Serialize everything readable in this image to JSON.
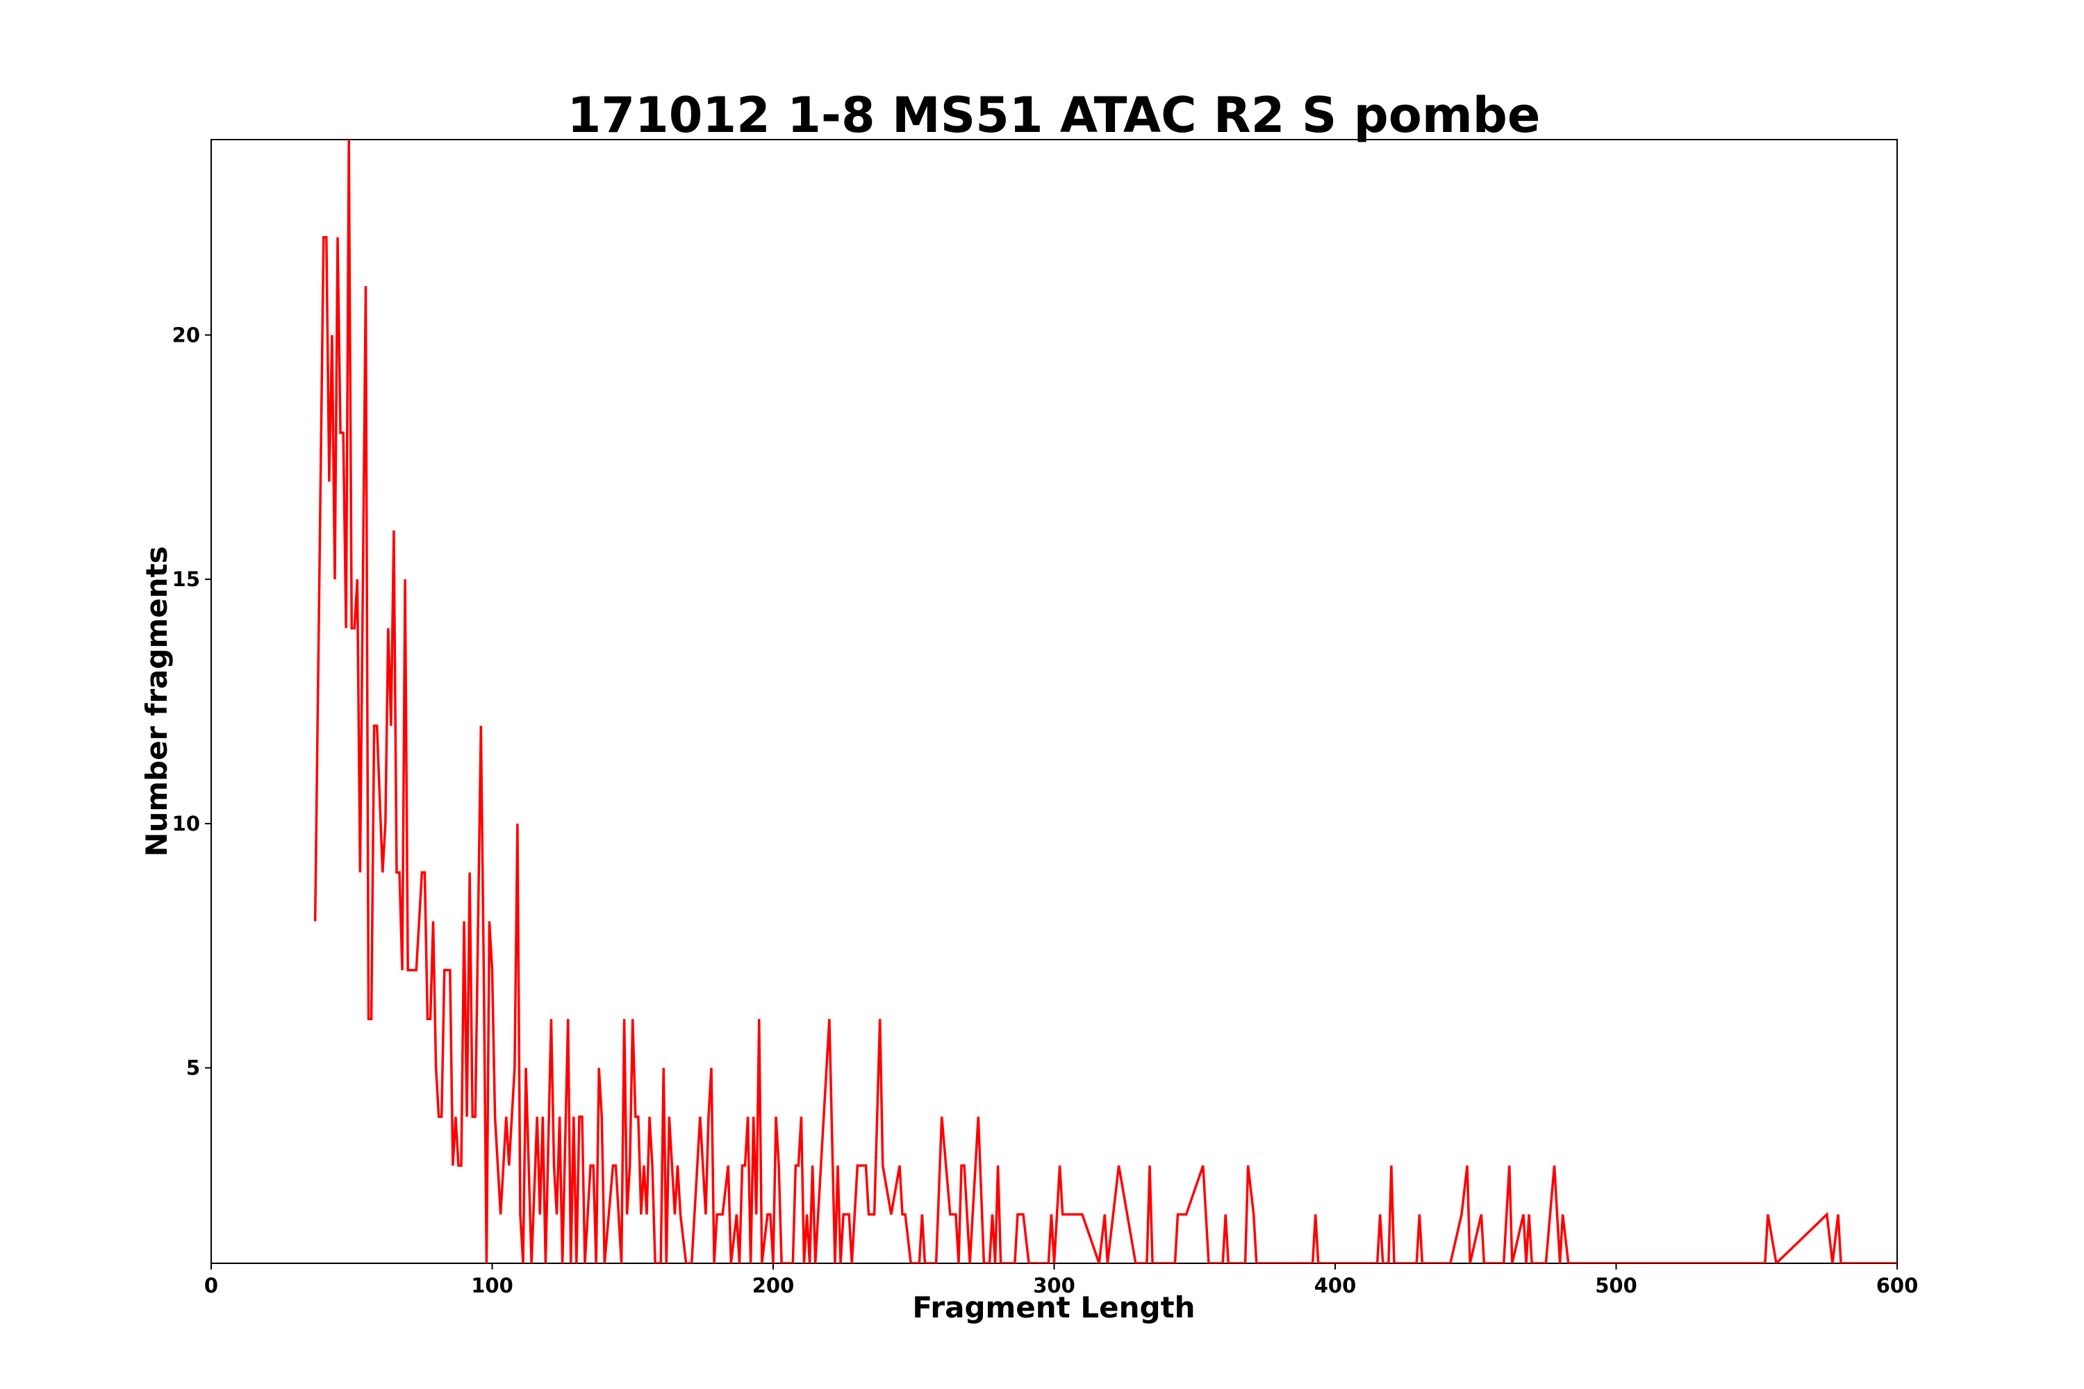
{
  "chart_data": {
    "type": "line",
    "title": "171012 1-8 MS51 ATAC R2 S pombe",
    "xlabel": "Fragment Length",
    "ylabel": "Number fragments",
    "xlim": [
      0,
      600
    ],
    "ylim": [
      1,
      24
    ],
    "xticks": [
      0,
      100,
      200,
      300,
      400,
      500,
      600
    ],
    "yticks": [
      5,
      10,
      15,
      20
    ],
    "grid": false,
    "x": [
      37,
      40,
      41,
      42,
      43,
      44,
      45,
      46,
      47,
      48,
      49,
      50,
      51,
      52,
      53,
      55,
      56,
      57,
      58,
      59,
      61,
      62,
      63,
      64,
      65,
      66,
      67,
      68,
      69,
      70,
      72,
      73,
      75,
      76,
      77,
      78,
      79,
      80,
      81,
      82,
      83,
      85,
      86,
      87,
      88,
      89,
      90,
      91,
      92,
      93,
      94,
      96,
      97,
      98,
      99,
      100,
      101,
      103,
      105,
      106,
      108,
      109,
      110,
      111,
      112,
      113,
      114,
      116,
      117,
      118,
      119,
      121,
      122,
      123,
      124,
      125,
      127,
      128,
      129,
      130,
      131,
      132,
      133,
      135,
      136,
      137,
      138,
      139,
      140,
      143,
      144,
      146,
      147,
      148,
      149,
      150,
      151,
      152,
      153,
      154,
      155,
      156,
      157,
      158,
      160,
      161,
      162,
      163,
      164,
      165,
      166,
      167,
      169,
      171,
      174,
      176,
      177,
      178,
      179,
      180,
      182,
      184,
      185,
      187,
      188,
      189,
      190,
      191,
      192,
      193,
      194,
      195,
      196,
      198,
      199,
      200,
      201,
      202,
      203,
      207,
      208,
      209,
      210,
      211,
      212,
      213,
      214,
      215,
      220,
      222,
      223,
      224,
      225,
      227,
      228,
      230,
      233,
      234,
      236,
      238,
      239,
      242,
      245,
      246,
      247,
      249,
      252,
      253,
      254,
      258,
      260,
      263,
      265,
      266,
      267,
      268,
      270,
      273,
      275,
      277,
      278,
      279,
      280,
      281,
      286,
      287,
      289,
      291,
      298,
      299,
      300,
      302,
      303,
      310,
      316,
      318,
      319,
      321,
      323,
      329,
      333,
      334,
      335,
      343,
      344,
      347,
      353,
      355,
      360,
      361,
      362,
      368,
      369,
      371,
      372,
      392,
      393,
      394,
      415,
      416,
      417,
      419,
      420,
      421,
      429,
      430,
      431,
      441,
      445,
      447,
      448,
      452,
      453,
      460,
      462,
      463,
      467,
      468,
      469,
      470,
      475,
      478,
      480,
      481,
      483,
      553,
      554,
      557,
      575,
      577,
      579,
      580,
      600
    ],
    "series": [
      {
        "color": "#ff0000",
        "values": [
          8,
          22,
          22,
          17,
          20,
          15,
          22,
          18,
          18,
          14,
          24,
          14,
          14,
          15,
          9,
          21,
          6,
          6,
          12,
          12,
          9,
          10,
          14,
          12,
          16,
          9,
          9,
          7,
          15,
          7,
          7,
          7,
          9,
          9,
          6,
          6,
          8,
          5,
          4,
          4,
          7,
          7,
          3,
          4,
          3,
          3,
          8,
          4,
          9,
          4,
          4,
          12,
          7,
          1,
          8,
          7,
          4,
          2,
          4,
          3,
          5,
          10,
          2,
          1,
          5,
          3,
          1,
          4,
          2,
          4,
          1,
          6,
          3,
          2,
          4,
          1,
          6,
          1,
          4,
          1,
          4,
          4,
          1,
          3,
          3,
          1,
          5,
          4,
          1,
          3,
          3,
          1,
          6,
          2,
          3,
          6,
          4,
          4,
          2,
          3,
          2,
          4,
          3,
          1,
          1,
          5,
          1,
          4,
          3,
          2,
          3,
          2,
          1,
          1,
          4,
          2,
          4,
          5,
          1,
          2,
          2,
          3,
          1,
          2,
          1,
          3,
          3,
          4,
          1,
          4,
          2,
          6,
          1,
          2,
          2,
          1,
          4,
          3,
          1,
          1,
          3,
          3,
          4,
          1,
          2,
          1,
          3,
          1,
          6,
          1,
          3,
          1,
          2,
          2,
          1,
          3,
          3,
          2,
          2,
          6,
          3,
          2,
          3,
          2,
          2,
          1,
          1,
          2,
          1,
          1,
          4,
          2,
          2,
          1,
          3,
          3,
          1,
          4,
          1,
          1,
          2,
          1,
          3,
          1,
          1,
          2,
          2,
          1,
          1,
          2,
          1,
          3,
          2,
          2,
          1,
          2,
          1,
          2,
          3,
          1,
          1,
          3,
          1,
          1,
          2,
          2,
          3,
          1,
          1,
          2,
          1,
          1,
          3,
          2,
          1,
          1,
          2,
          1,
          1,
          2,
          1,
          1,
          3,
          1,
          1,
          2,
          1,
          1,
          2,
          3,
          1,
          2,
          1,
          1,
          3,
          1,
          2,
          1,
          2,
          1,
          1,
          3,
          1,
          2,
          1,
          1,
          2,
          1,
          2,
          1,
          2,
          1,
          1
        ]
      }
    ]
  }
}
